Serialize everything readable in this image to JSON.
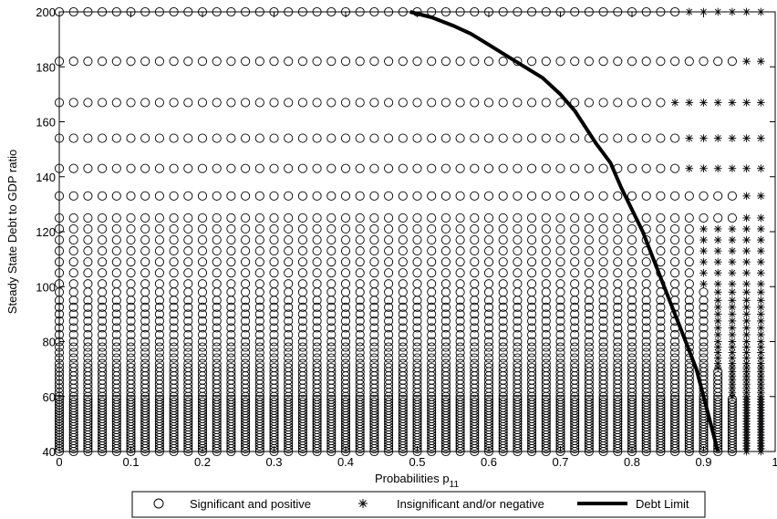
{
  "chart_data": {
    "type": "scatter",
    "title": "",
    "xlabel": "Probabilities p",
    "xlabel_subscript": "11",
    "ylabel": "Steady State Debt to GDP ratio",
    "xlim": [
      0,
      1
    ],
    "ylim": [
      40,
      200
    ],
    "xticks": [
      "0",
      "0.1",
      "0.2",
      "0.3",
      "0.4",
      "0.5",
      "0.6",
      "0.7",
      "0.8",
      "0.9",
      "1"
    ],
    "yticks": [
      "40",
      "60",
      "80",
      "100",
      "120",
      "140",
      "160",
      "180",
      "200"
    ],
    "grid": false,
    "legend_position": "bottom",
    "x_grid": [
      0,
      0.98,
      0.02
    ],
    "y_levels": [
      40,
      41,
      42,
      43,
      44,
      45,
      46,
      47,
      48,
      49,
      50,
      51,
      52,
      53,
      54,
      55,
      56,
      57,
      58,
      59,
      60,
      61.5,
      63,
      64.5,
      66,
      67.5,
      69,
      70.5,
      72,
      74,
      76,
      78,
      80,
      82.5,
      85,
      87.5,
      90,
      92.5,
      95,
      98,
      101,
      105,
      109,
      113,
      117,
      121,
      125,
      133,
      143,
      154,
      167,
      182,
      200
    ],
    "series": [
      {
        "name": "Significant and positive",
        "marker": "circle",
        "rule": "x below threshold(y)"
      },
      {
        "name": "Insignificant and/or negative",
        "marker": "asterisk",
        "rule": "x at or above threshold(y)"
      },
      {
        "name": "Debt Limit",
        "marker": "line",
        "color": "#000000",
        "x": [
          0.92,
          0.91,
          0.9,
          0.89,
          0.875,
          0.86,
          0.845,
          0.83,
          0.815,
          0.8,
          0.785,
          0.77,
          0.75,
          0.735,
          0.72,
          0.7,
          0.675,
          0.65,
          0.625,
          0.6,
          0.575,
          0.55,
          0.52,
          0.49
        ],
        "y": [
          40,
          50,
          60,
          70,
          80,
          90,
          100,
          110,
          120,
          128,
          136,
          145,
          152,
          158,
          164,
          170,
          176,
          180,
          184,
          188,
          192,
          195,
          198,
          200
        ]
      }
    ],
    "threshold_by_y": [
      {
        "y_min": 40,
        "y_max": 60,
        "x": 0.96
      },
      {
        "y_min": 60,
        "y_max": 70,
        "x": 0.94
      },
      {
        "y_min": 70,
        "y_max": 100,
        "x": 0.92
      },
      {
        "y_min": 100,
        "y_max": 130,
        "x": 0.9
      },
      {
        "y_min": 130,
        "y_max": 140,
        "x": 0.94
      },
      {
        "y_min": 140,
        "y_max": 160,
        "x": 0.88
      },
      {
        "y_min": 160,
        "y_max": 175,
        "x": 0.86
      },
      {
        "y_min": 175,
        "y_max": 190,
        "x": 0.84
      },
      {
        "y_min": 190,
        "y_max": 200,
        "x": 0.88
      }
    ],
    "threshold_exceptions": [
      {
        "y": 133,
        "x": 0.96
      },
      {
        "y": 182,
        "x": 0.96
      },
      {
        "y": 125,
        "x": 0.96
      }
    ]
  }
}
